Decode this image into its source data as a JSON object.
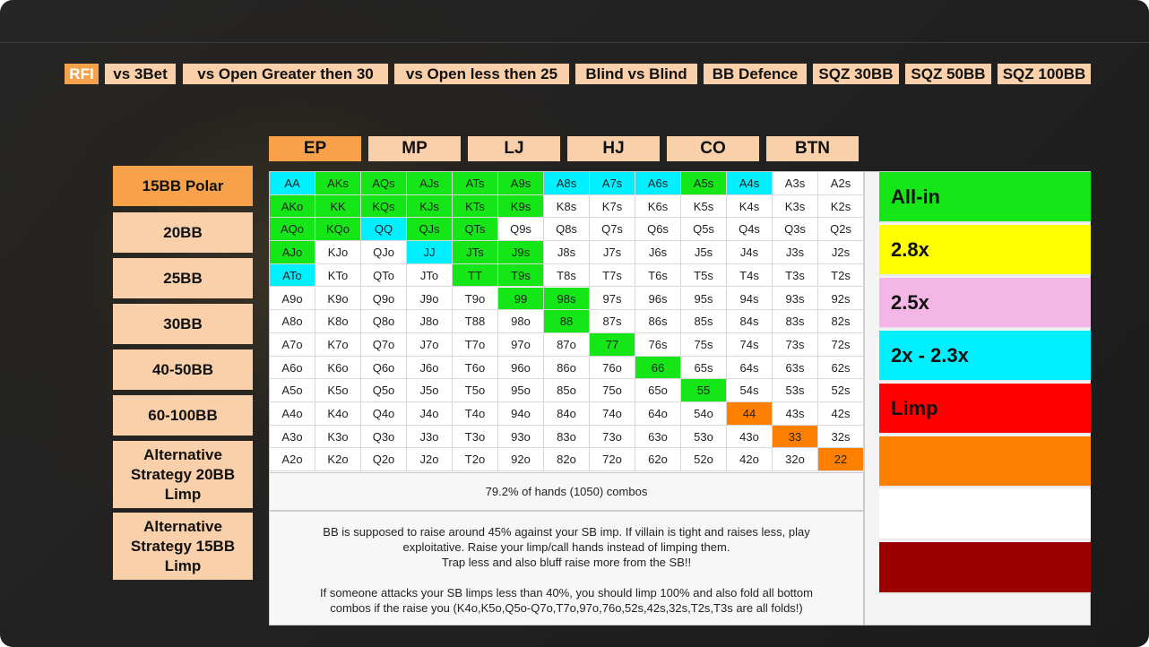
{
  "tabs": [
    "RFI",
    "vs 3Bet",
    "vs Open  Greater then 30",
    "vs Open less then 25",
    "Blind vs Blind",
    "BB Defence",
    "SQZ 30BB",
    "SQZ 50BB",
    "SQZ 100BB"
  ],
  "active_tab": 0,
  "positions": [
    "EP",
    "MP",
    "LJ",
    "HJ",
    "CO",
    "BTN"
  ],
  "active_position": 0,
  "stacks": [
    "15BB Polar",
    "20BB",
    "25BB",
    "30BB",
    "40-50BB",
    "60-100BB",
    "Alternative Strategy 20BB Limp",
    "Alternative Strategy 15BB Limp"
  ],
  "active_stack": 0,
  "colors": {
    "allin": "#15e617",
    "r28": "#ffff00",
    "r25": "#f3b6e6",
    "r2": "#00f0ff",
    "limp": "#ff0000",
    "orange": "#ff8000",
    "white": "#ffffff",
    "dark": "#9b0000"
  },
  "grid": [
    [
      "AA",
      "AKs",
      "AQs",
      "AJs",
      "ATs",
      "A9s",
      "A8s",
      "A7s",
      "A6s",
      "A5s",
      "A4s",
      "A3s",
      "A2s"
    ],
    [
      "AKo",
      "KK",
      "KQs",
      "KJs",
      "KTs",
      "K9s",
      "K8s",
      "K7s",
      "K6s",
      "K5s",
      "K4s",
      "K3s",
      "K2s"
    ],
    [
      "AQo",
      "KQo",
      "QQ",
      "QJs",
      "QTs",
      "Q9s",
      "Q8s",
      "Q7s",
      "Q6s",
      "Q5s",
      "Q4s",
      "Q3s",
      "Q2s"
    ],
    [
      "AJo",
      "KJo",
      "QJo",
      "JJ",
      "JTs",
      "J9s",
      "J8s",
      "J7s",
      "J6s",
      "J5s",
      "J4s",
      "J3s",
      "J2s"
    ],
    [
      "ATo",
      "KTo",
      "QTo",
      "JTo",
      "TT",
      "T9s",
      "T8s",
      "T7s",
      "T6s",
      "T5s",
      "T4s",
      "T3s",
      "T2s"
    ],
    [
      "A9o",
      "K9o",
      "Q9o",
      "J9o",
      "T9o",
      "99",
      "98s",
      "97s",
      "96s",
      "95s",
      "94s",
      "93s",
      "92s"
    ],
    [
      "A8o",
      "K8o",
      "Q8o",
      "J8o",
      "T88",
      "98o",
      "88",
      "87s",
      "86s",
      "85s",
      "84s",
      "83s",
      "82s"
    ],
    [
      "A7o",
      "K7o",
      "Q7o",
      "J7o",
      "T7o",
      "97o",
      "87o",
      "77",
      "76s",
      "75s",
      "74s",
      "73s",
      "72s"
    ],
    [
      "A6o",
      "K6o",
      "Q6o",
      "J6o",
      "T6o",
      "96o",
      "86o",
      "76o",
      "66",
      "65s",
      "64s",
      "63s",
      "62s"
    ],
    [
      "A5o",
      "K5o",
      "Q5o",
      "J5o",
      "T5o",
      "95o",
      "85o",
      "75o",
      "65o",
      "55",
      "54s",
      "53s",
      "52s"
    ],
    [
      "A4o",
      "K4o",
      "Q4o",
      "J4o",
      "T4o",
      "94o",
      "84o",
      "74o",
      "64o",
      "54o",
      "44",
      "43s",
      "42s"
    ],
    [
      "A3o",
      "K3o",
      "Q3o",
      "J3o",
      "T3o",
      "93o",
      "83o",
      "73o",
      "63o",
      "53o",
      "43o",
      "33",
      "32s"
    ],
    [
      "A2o",
      "K2o",
      "Q2o",
      "J2o",
      "T2o",
      "92o",
      "82o",
      "72o",
      "62o",
      "52o",
      "42o",
      "32o",
      "22"
    ]
  ],
  "grid_actions": [
    [
      "r2",
      "allin",
      "allin",
      "allin",
      "allin",
      "allin",
      "r2",
      "r2",
      "r2",
      "allin",
      "r2",
      "white",
      "white"
    ],
    [
      "allin",
      "allin",
      "allin",
      "allin",
      "allin",
      "allin",
      "white",
      "white",
      "white",
      "white",
      "white",
      "white",
      "white"
    ],
    [
      "allin",
      "allin",
      "r2",
      "allin",
      "allin",
      "white",
      "white",
      "white",
      "white",
      "white",
      "white",
      "white",
      "white"
    ],
    [
      "allin",
      "white",
      "white",
      "r2",
      "allin",
      "allin",
      "white",
      "white",
      "white",
      "white",
      "white",
      "white",
      "white"
    ],
    [
      "r2",
      "white",
      "white",
      "white",
      "allin",
      "allin",
      "white",
      "white",
      "white",
      "white",
      "white",
      "white",
      "white"
    ],
    [
      "white",
      "white",
      "white",
      "white",
      "white",
      "allin",
      "allin",
      "white",
      "white",
      "white",
      "white",
      "white",
      "white"
    ],
    [
      "white",
      "white",
      "white",
      "white",
      "white",
      "white",
      "allin",
      "white",
      "white",
      "white",
      "white",
      "white",
      "white"
    ],
    [
      "white",
      "white",
      "white",
      "white",
      "white",
      "white",
      "white",
      "allin",
      "white",
      "white",
      "white",
      "white",
      "white"
    ],
    [
      "white",
      "white",
      "white",
      "white",
      "white",
      "white",
      "white",
      "white",
      "allin",
      "white",
      "white",
      "white",
      "white"
    ],
    [
      "white",
      "white",
      "white",
      "white",
      "white",
      "white",
      "white",
      "white",
      "white",
      "allin",
      "white",
      "white",
      "white"
    ],
    [
      "white",
      "white",
      "white",
      "white",
      "white",
      "white",
      "white",
      "white",
      "white",
      "white",
      "orange",
      "white",
      "white"
    ],
    [
      "white",
      "white",
      "white",
      "white",
      "white",
      "white",
      "white",
      "white",
      "white",
      "white",
      "white",
      "orange",
      "white"
    ],
    [
      "white",
      "white",
      "white",
      "white",
      "white",
      "white",
      "white",
      "white",
      "white",
      "white",
      "white",
      "white",
      "orange"
    ]
  ],
  "combos_text": "79.2% of hands (1050) combos",
  "note": {
    "para1": [
      "BB is supposed to raise around 45% against your SB imp. If villain is tight and raises less, play",
      "exploitative. Raise your limp/call hands instead of limping them.",
      "Trap less and also bluff raise more from the SB!!"
    ],
    "para2": [
      "If someone attacks your SB limps less than 40%, you should limp 100% and also fold all bottom",
      "combos if the raise you (K4o,K5o,Q5o-Q7o,T7o,97o,76o,52s,42s,32s,T2s,T3s are all folds!)"
    ]
  },
  "legend": [
    {
      "label": "All-in",
      "color": "#15e617"
    },
    {
      "label": "2.8x",
      "color": "#ffff00"
    },
    {
      "label": "2.5x",
      "color": "#f3b6e6"
    },
    {
      "label": "2x - 2.3x",
      "color": "#00f0ff"
    },
    {
      "label": "Limp",
      "color": "#ff0000"
    },
    {
      "label": "",
      "color": "#ff8000"
    },
    {
      "label": "",
      "color": "#ffffff"
    },
    {
      "label": "",
      "color": "#9b0000"
    }
  ]
}
